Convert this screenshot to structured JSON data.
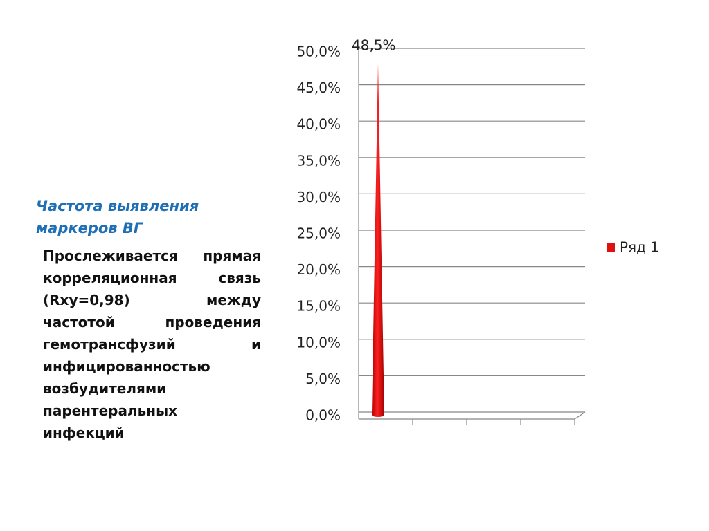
{
  "title": "Частота выявления маркеров ВГ",
  "body": "Прослеживается прямая корреляционная связь (Rxy=0,98) между частотой проведения гемотрансфузий и инфицированностью возбудителями парентеральных инфекций",
  "chart_data": {
    "type": "bar",
    "categories": [
      null,
      null,
      null,
      null
    ],
    "series": [
      {
        "name": "Ряд 1",
        "color": "#e01010",
        "values": [
          48.5,
          null,
          null,
          null
        ],
        "value_labels": [
          "48,5%",
          null,
          null,
          null
        ]
      }
    ],
    "ylim": [
      0,
      50
    ],
    "yticks": [
      {
        "value": 0,
        "label": "0,0%"
      },
      {
        "value": 5,
        "label": "5,0%"
      },
      {
        "value": 10,
        "label": "10,0%"
      },
      {
        "value": 15,
        "label": "15,0%"
      },
      {
        "value": 20,
        "label": "20,0%"
      },
      {
        "value": 25,
        "label": "25,0%"
      },
      {
        "value": 30,
        "label": "30,0%"
      },
      {
        "value": 35,
        "label": "35,0%"
      },
      {
        "value": 40,
        "label": "40,0%"
      },
      {
        "value": 45,
        "label": "45,0%"
      },
      {
        "value": 50,
        "label": "50,0%"
      }
    ],
    "grid": true,
    "legend": "right"
  }
}
